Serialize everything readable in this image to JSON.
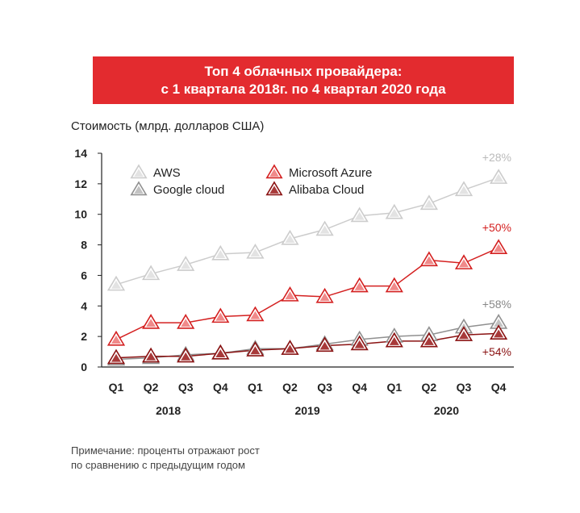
{
  "title_line1": "Топ 4 облачных провайдера:",
  "title_line2": "с 1 квартала 2018г. по 4 квартал 2020 года",
  "note_line1": "Примечание: проценты отражают рост",
  "note_line2": "по сравнению с предыдущим годом",
  "chart_data": {
    "type": "line",
    "ylabel": "Стоимость (млрд. долларов США)",
    "ylim": [
      0,
      14
    ],
    "yticks": [
      0,
      2,
      4,
      6,
      8,
      10,
      12,
      14
    ],
    "categories": [
      "Q1",
      "Q2",
      "Q3",
      "Q4",
      "Q1",
      "Q2",
      "Q3",
      "Q4",
      "Q1",
      "Q2",
      "Q3",
      "Q4"
    ],
    "years": [
      {
        "label": "2018",
        "from": 0,
        "to": 3
      },
      {
        "label": "2019",
        "from": 4,
        "to": 7
      },
      {
        "label": "2020",
        "from": 8,
        "to": 11
      }
    ],
    "legend_position": "top-left",
    "series": [
      {
        "name": "AWS",
        "color": "#cccccc",
        "fill": "#e3e3e3",
        "values": [
          5.4,
          6.1,
          6.7,
          7.4,
          7.5,
          8.4,
          9.0,
          9.9,
          10.1,
          10.7,
          11.6,
          12.4
        ],
        "growth": "+28%",
        "growth_color": "#bbbbbb"
      },
      {
        "name": "Microsoft Azure",
        "color": "#d42020",
        "fill": "#f08a8a",
        "values": [
          1.8,
          2.9,
          2.9,
          3.3,
          3.4,
          4.7,
          4.6,
          5.3,
          5.3,
          7.0,
          6.8,
          7.8
        ],
        "growth": "+50%",
        "growth_color": "#d42020"
      },
      {
        "name": "Google cloud",
        "color": "#909090",
        "fill": "#c2c2c2",
        "values": [
          0.5,
          0.6,
          0.8,
          0.9,
          1.2,
          1.2,
          1.5,
          1.8,
          2.0,
          2.1,
          2.6,
          2.9
        ],
        "growth": "+58%",
        "growth_color": "#888888"
      },
      {
        "name": "Alibaba Cloud",
        "color": "#8a1212",
        "fill": "#a83a3a",
        "values": [
          0.6,
          0.7,
          0.7,
          0.9,
          1.1,
          1.2,
          1.4,
          1.5,
          1.7,
          1.7,
          2.1,
          2.2
        ],
        "growth": "+54%",
        "growth_color": "#8a1212"
      }
    ]
  }
}
